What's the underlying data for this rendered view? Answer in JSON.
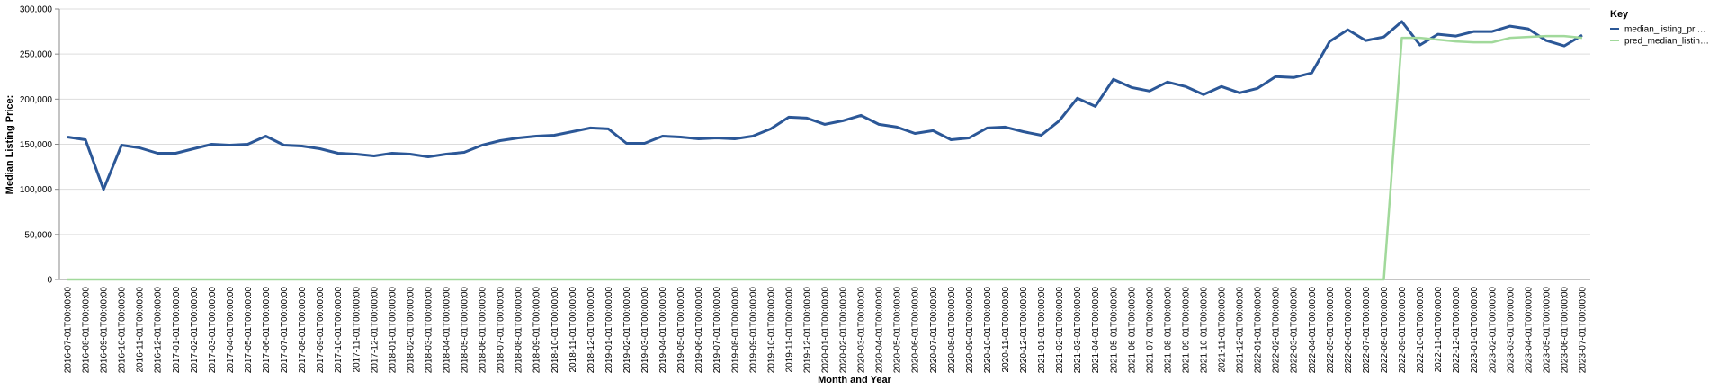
{
  "chart_data": {
    "type": "line",
    "x_label": "Month and Year",
    "y_label": "Median Listing Price:",
    "legend_title": "Key",
    "legend_position": "right",
    "grid": true,
    "categories": [
      "2016-07-01T00:00:00",
      "2016-08-01T00:00:00",
      "2016-09-01T00:00:00",
      "2016-10-01T00:00:00",
      "2016-11-01T00:00:00",
      "2016-12-01T00:00:00",
      "2017-01-01T00:00:00",
      "2017-02-01T00:00:00",
      "2017-03-01T00:00:00",
      "2017-04-01T00:00:00",
      "2017-05-01T00:00:00",
      "2017-06-01T00:00:00",
      "2017-07-01T00:00:00",
      "2017-08-01T00:00:00",
      "2017-09-01T00:00:00",
      "2017-10-01T00:00:00",
      "2017-11-01T00:00:00",
      "2017-12-01T00:00:00",
      "2018-01-01T00:00:00",
      "2018-02-01T00:00:00",
      "2018-03-01T00:00:00",
      "2018-04-01T00:00:00",
      "2018-05-01T00:00:00",
      "2018-06-01T00:00:00",
      "2018-07-01T00:00:00",
      "2018-08-01T00:00:00",
      "2018-09-01T00:00:00",
      "2018-10-01T00:00:00",
      "2018-11-01T00:00:00",
      "2018-12-01T00:00:00",
      "2019-01-01T00:00:00",
      "2019-02-01T00:00:00",
      "2019-03-01T00:00:00",
      "2019-04-01T00:00:00",
      "2019-05-01T00:00:00",
      "2019-06-01T00:00:00",
      "2019-07-01T00:00:00",
      "2019-08-01T00:00:00",
      "2019-09-01T00:00:00",
      "2019-10-01T00:00:00",
      "2019-11-01T00:00:00",
      "2019-12-01T00:00:00",
      "2020-01-01T00:00:00",
      "2020-02-01T00:00:00",
      "2020-03-01T00:00:00",
      "2020-04-01T00:00:00",
      "2020-05-01T00:00:00",
      "2020-06-01T00:00:00",
      "2020-07-01T00:00:00",
      "2020-08-01T00:00:00",
      "2020-09-01T00:00:00",
      "2020-10-01T00:00:00",
      "2020-11-01T00:00:00",
      "2020-12-01T00:00:00",
      "2021-01-01T00:00:00",
      "2021-02-01T00:00:00",
      "2021-03-01T00:00:00",
      "2021-04-01T00:00:00",
      "2021-05-01T00:00:00",
      "2021-06-01T00:00:00",
      "2021-07-01T00:00:00",
      "2021-08-01T00:00:00",
      "2021-09-01T00:00:00",
      "2021-10-01T00:00:00",
      "2021-11-01T00:00:00",
      "2021-12-01T00:00:00",
      "2022-01-01T00:00:00",
      "2022-02-01T00:00:00",
      "2022-03-01T00:00:00",
      "2022-04-01T00:00:00",
      "2022-05-01T00:00:00",
      "2022-06-01T00:00:00",
      "2022-07-01T00:00:00",
      "2022-08-01T00:00:00",
      "2022-09-01T00:00:00",
      "2022-10-01T00:00:00",
      "2022-11-01T00:00:00",
      "2022-12-01T00:00:00",
      "2023-01-01T00:00:00",
      "2023-02-01T00:00:00",
      "2023-03-01T00:00:00",
      "2023-04-01T00:00:00",
      "2023-05-01T00:00:00",
      "2023-06-01T00:00:00",
      "2023-07-01T00:00:00"
    ],
    "series": [
      {
        "name": "median_listing_pri…",
        "color": "#2b5797",
        "values": [
          158000,
          155000,
          100000,
          149000,
          146000,
          140000,
          140000,
          145000,
          150000,
          149000,
          150000,
          159000,
          149000,
          148000,
          145000,
          140000,
          139000,
          137000,
          140000,
          139000,
          136000,
          139000,
          141000,
          149000,
          154000,
          157000,
          159000,
          160000,
          164000,
          168000,
          167000,
          151000,
          151000,
          159000,
          158000,
          156000,
          157000,
          156000,
          159000,
          167000,
          180000,
          179000,
          172000,
          176000,
          182000,
          172000,
          169000,
          162000,
          165000,
          155000,
          157000,
          168000,
          169000,
          164000,
          160000,
          176000,
          201000,
          192000,
          222000,
          213000,
          209000,
          219000,
          214000,
          205000,
          214000,
          207000,
          212000,
          225000,
          224000,
          229000,
          264000,
          277000,
          265000,
          269000,
          286000,
          260000,
          272000,
          270000,
          275000,
          275000,
          281000,
          278000,
          265000,
          259000,
          271000
        ]
      },
      {
        "name": "pred_median_listin…",
        "color": "#a1d99b",
        "values": [
          0,
          0,
          0,
          0,
          0,
          0,
          0,
          0,
          0,
          0,
          0,
          0,
          0,
          0,
          0,
          0,
          0,
          0,
          0,
          0,
          0,
          0,
          0,
          0,
          0,
          0,
          0,
          0,
          0,
          0,
          0,
          0,
          0,
          0,
          0,
          0,
          0,
          0,
          0,
          0,
          0,
          0,
          0,
          0,
          0,
          0,
          0,
          0,
          0,
          0,
          0,
          0,
          0,
          0,
          0,
          0,
          0,
          0,
          0,
          0,
          0,
          0,
          0,
          0,
          0,
          0,
          0,
          0,
          0,
          0,
          0,
          0,
          0,
          0,
          268000,
          268000,
          266000,
          264000,
          263000,
          263000,
          268000,
          269000,
          270000,
          270000,
          268000
        ]
      }
    ],
    "ylim": [
      0,
      300000
    ],
    "yticks": [
      {
        "value": 0,
        "label": "0"
      },
      {
        "value": 50000,
        "label": "50,000"
      },
      {
        "value": 100000,
        "label": "100,000"
      },
      {
        "value": 150000,
        "label": "150,000"
      },
      {
        "value": 200000,
        "label": "200,000"
      },
      {
        "value": 250000,
        "label": "250,000"
      },
      {
        "value": 300000,
        "label": "300,000"
      }
    ]
  }
}
